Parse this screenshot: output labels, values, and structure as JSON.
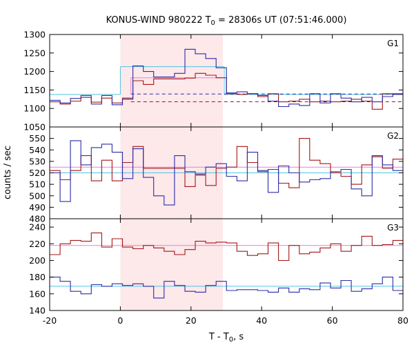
{
  "chart_data": {
    "type": "line",
    "title": "KONUS-WIND 980222 T",
    "title_subscript": "0",
    "title_rest": " = 28306s UT (07:51:46.000)",
    "xlabel": "T - T",
    "xlabel_subscript": "0",
    "xlabel_rest": ", s",
    "ylabel": "counts / sec",
    "xlim": [
      -20,
      80
    ],
    "x_ticks": [
      -20,
      0,
      20,
      40,
      60,
      80
    ],
    "x_tick_labels": [
      "-20",
      "0",
      "20",
      "40",
      "60",
      "80"
    ],
    "highlight_interval": [
      0,
      29
    ],
    "highlight_color": "#fde8ea",
    "colors": {
      "red": "#a31515",
      "blue": "#2b2ba8",
      "cyan": "#4fc3e0",
      "pink": "#ea7fd0"
    },
    "bin_width": 2.944,
    "x_start": -20,
    "panels": [
      {
        "label": "G1",
        "ylim": [
          1050,
          1300
        ],
        "y_ticks": [
          1050,
          1100,
          1150,
          1200,
          1250,
          1300
        ],
        "y_tick_labels": [
          "1050",
          "1100",
          "1150",
          "1200",
          "1250",
          "1300"
        ],
        "series": [
          {
            "color": "red",
            "values": [
              1118,
              1112,
              1120,
              1135,
              1117,
              1128,
              1115,
              1128,
              1175,
              1165,
              1180,
              1180,
              1180,
              1182,
              1195,
              1190,
              1183,
              1140,
              1138,
              1140,
              1132,
              1140,
              1118,
              1120,
              1125,
              1118,
              1120,
              1118,
              1120,
              1125,
              1120,
              1098,
              1140,
              1140,
              1118
            ]
          },
          {
            "color": "blue",
            "values": [
              1122,
              1115,
              1127,
              1130,
              1112,
              1135,
              1110,
              1125,
              1215,
              1200,
              1185,
              1185,
              1195,
              1260,
              1248,
              1235,
              1210,
              1142,
              1145,
              1140,
              1135,
              1120,
              1105,
              1112,
              1108,
              1140,
              1115,
              1140,
              1128,
              1118,
              1130,
              1118,
              1132,
              1138,
              1120
            ]
          }
        ],
        "fits": [
          {
            "color": "cyan",
            "style": "solid",
            "segments": [
              {
                "x0": -20,
                "x1": 0,
                "y": 1138
              },
              {
                "x0": 0,
                "x1": 29.4,
                "y": 1213
              },
              {
                "x0": 29.4,
                "x1": 80,
                "y": 1138
              }
            ],
            "verticals": [
              0,
              29.4
            ]
          },
          {
            "color": "pink",
            "style": "solid",
            "segments": [
              {
                "x0": 3,
                "x1": 29,
                "y": 1183
              }
            ],
            "verticals": [
              3
            ]
          },
          {
            "color": "blue",
            "style": "dashed",
            "segments": [
              {
                "x0": 3,
                "x1": 80,
                "y": 1139
              }
            ]
          },
          {
            "color": "red",
            "style": "dashed",
            "segments": [
              {
                "x0": 3,
                "x1": 80,
                "y": 1118
              }
            ]
          }
        ]
      },
      {
        "label": "G2",
        "ylim": [
          480,
          560
        ],
        "y_ticks": [
          480,
          490,
          500,
          510,
          520,
          530,
          540,
          550
        ],
        "y_tick_labels": [
          "480",
          "490",
          "500",
          "510",
          "520",
          "530",
          "540",
          "550"
        ],
        "series": [
          {
            "color": "red",
            "values": [
              522,
              514,
              522,
              535,
              513,
              531,
              513,
              529,
              543,
              524,
              524,
              524,
              524,
              508,
              518,
              509,
              524,
              525,
              543,
              529,
              521,
              523,
              511,
              507,
              550,
              531,
              528,
              520,
              517,
              510,
              527,
              534,
              524,
              532,
              531
            ]
          },
          {
            "color": "blue",
            "values": [
              520,
              495,
              548,
              527,
              542,
              545,
              538,
              515,
              541,
              516,
              500,
              492,
              535,
              521,
              519,
              525,
              528,
              517,
              513,
              538,
              522,
              503,
              526,
              520,
              512,
              514,
              515,
              521,
              523,
              506,
              500,
              535,
              527,
              522,
              515
            ]
          }
        ],
        "fits": [
          {
            "color": "pink",
            "style": "solid",
            "segments": [
              {
                "x0": -20,
                "x1": 80,
                "y": 525
              }
            ]
          },
          {
            "color": "cyan",
            "style": "solid",
            "segments": [
              {
                "x0": -20,
                "x1": 80,
                "y": 520
              }
            ]
          }
        ]
      },
      {
        "label": "G3",
        "ylim": [
          140,
          250
        ],
        "y_ticks": [
          140,
          160,
          180,
          200,
          220,
          240
        ],
        "y_tick_labels": [
          "140",
          "160",
          "180",
          "200",
          "220",
          "240"
        ],
        "series": [
          {
            "color": "red",
            "values": [
              207,
              220,
              224,
              223,
              233,
              216,
              226,
              216,
              214,
              218,
              215,
              211,
              207,
              213,
              223,
              221,
              222,
              221,
              211,
              206,
              208,
              221,
              200,
              218,
              208,
              210,
              215,
              220,
              211,
              218,
              229,
              218,
              219,
              224,
              218
            ]
          },
          {
            "color": "blue",
            "values": [
              180,
              175,
              163,
              160,
              171,
              169,
              172,
              170,
              172,
              169,
              155,
              175,
              170,
              163,
              162,
              170,
              175,
              164,
              165,
              165,
              164,
              162,
              167,
              162,
              166,
              165,
              173,
              167,
              176,
              163,
              166,
              172,
              180,
              164,
              160
            ]
          }
        ],
        "fits": [
          {
            "color": "pink",
            "style": "solid",
            "segments": [
              {
                "x0": -20,
                "x1": 80,
                "y": 218
              }
            ]
          },
          {
            "color": "cyan",
            "style": "solid",
            "segments": [
              {
                "x0": -20,
                "x1": 80,
                "y": 169
              }
            ]
          }
        ]
      }
    ]
  }
}
